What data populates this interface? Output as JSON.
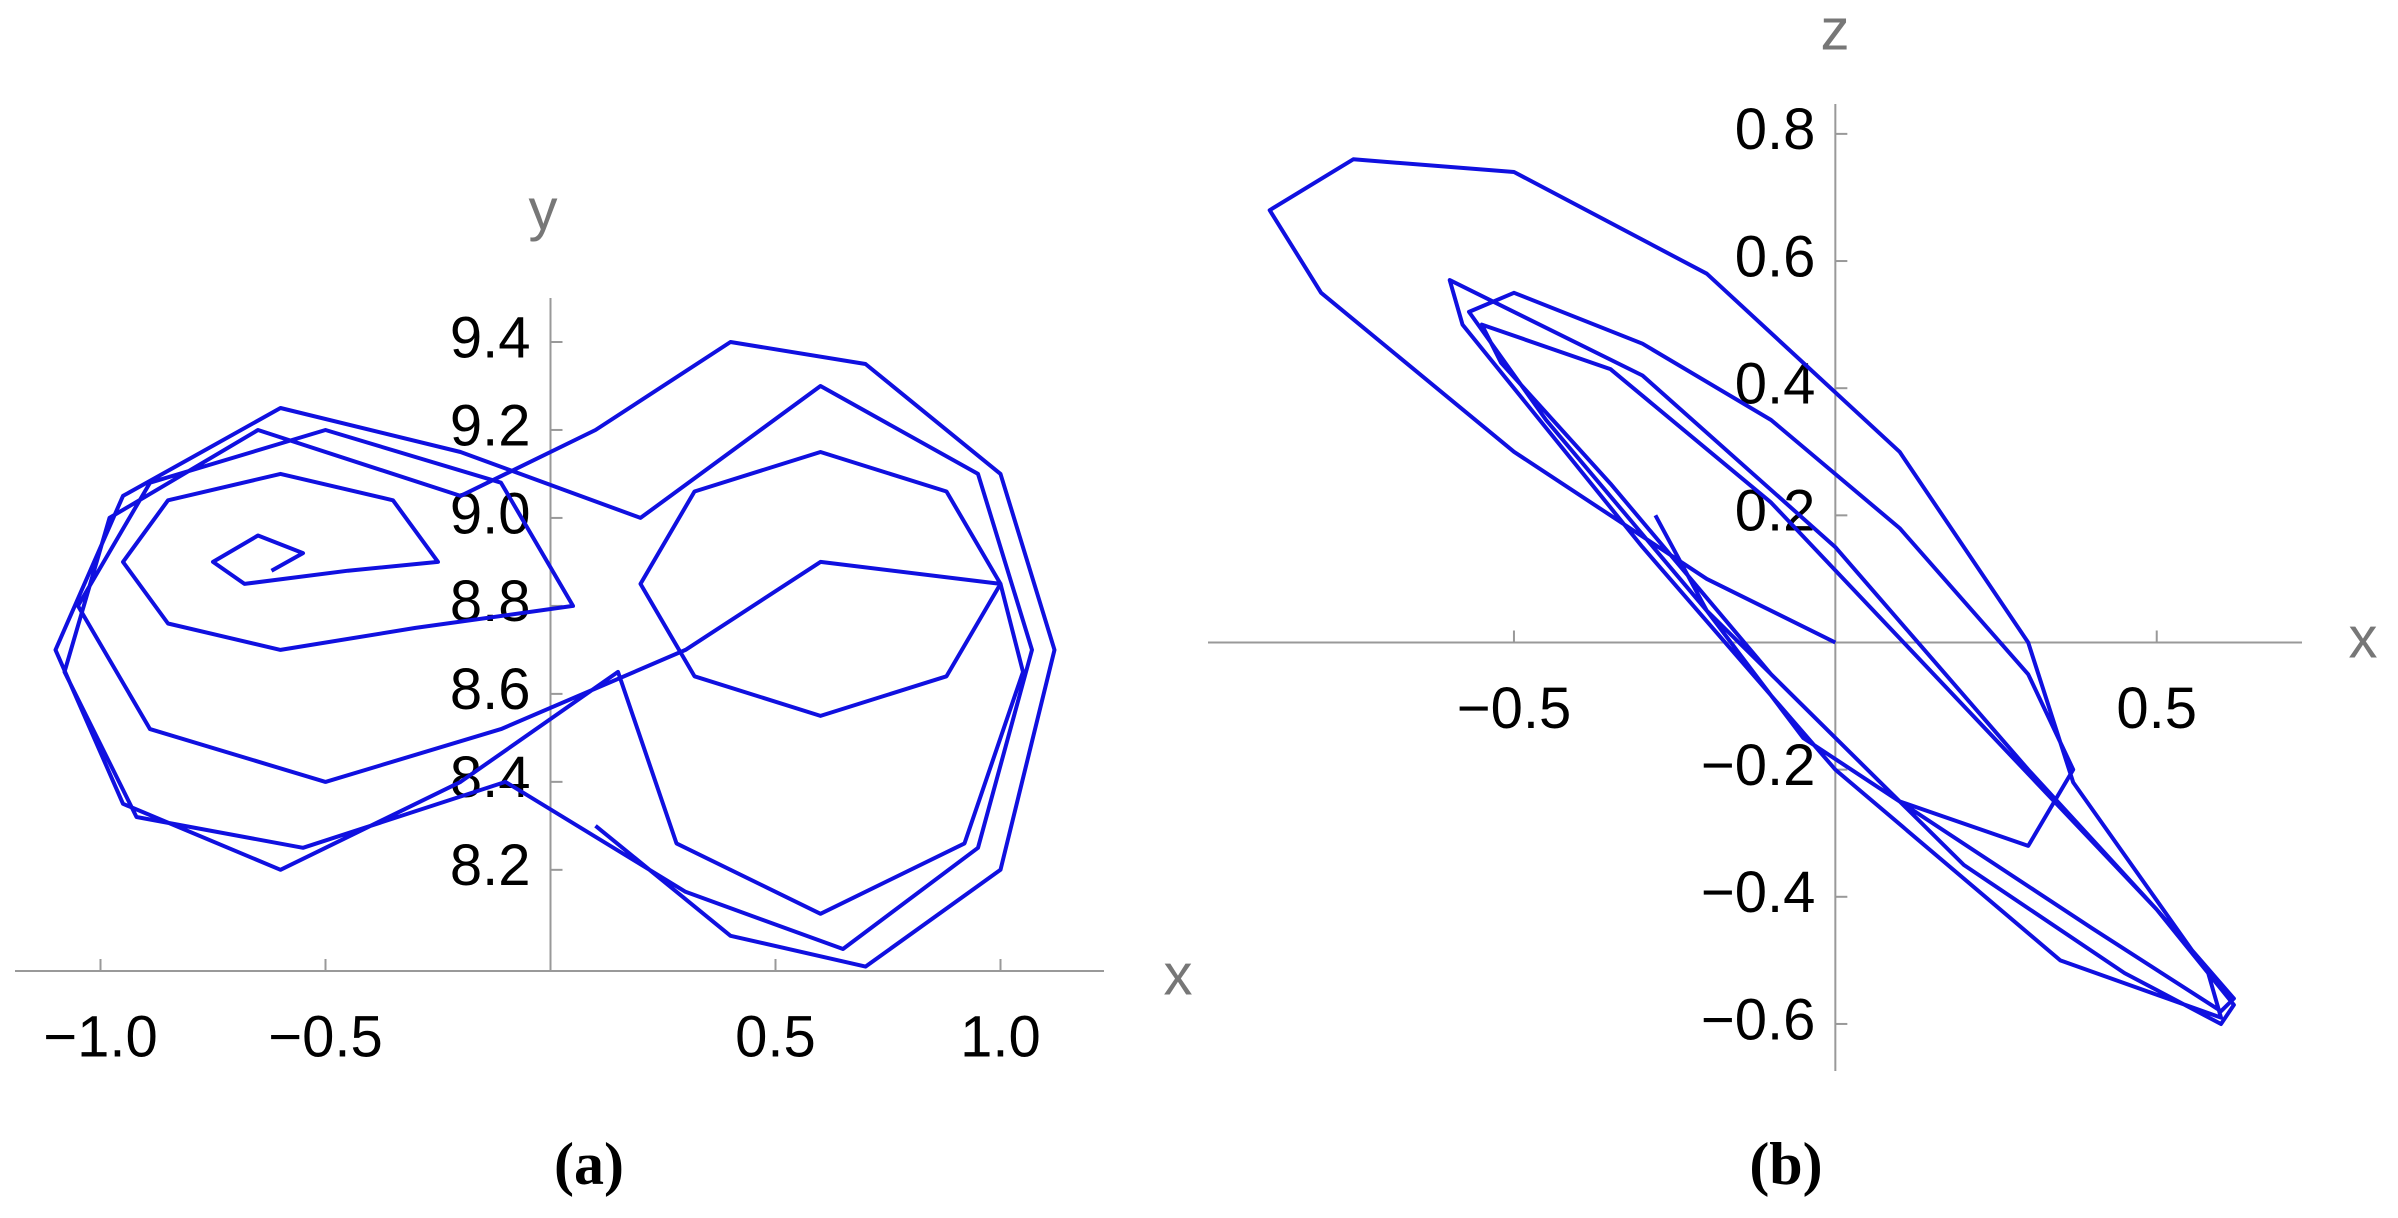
{
  "chart_data": [
    {
      "type": "line",
      "xlabel": "x",
      "ylabel": "y",
      "caption": "(a)",
      "color": "#1010e0",
      "xlim": [
        -1.19,
        1.23
      ],
      "ylim": [
        7.97,
        9.5
      ],
      "xticks": [
        {
          "value": -1,
          "label": "−1.0"
        },
        {
          "value": -0.5,
          "label": "−0.5"
        },
        0.5,
        {
          "value": 1,
          "label": "1.0"
        }
      ],
      "yticks": [
        8.2,
        8.4,
        8.6,
        8.8,
        {
          "value": 9,
          "label": "9.0"
        },
        9.2,
        9.4
      ],
      "x": [
        -0.62,
        -0.55,
        -0.65,
        -0.75,
        -0.68,
        -0.45,
        -0.25,
        -0.35,
        -0.6,
        -0.85,
        -0.95,
        -0.85,
        -0.6,
        -0.3,
        0.05,
        -0.11,
        -0.5,
        -0.89,
        -1.05,
        -0.89,
        -0.5,
        -0.11,
        0.3,
        0.6,
        1.0,
        0.88,
        0.6,
        0.32,
        0.2,
        0.32,
        0.6,
        0.88,
        1.0,
        1.05,
        0.92,
        0.6,
        0.28,
        0.15,
        -0.2,
        -0.6,
        -0.95,
        -1.1,
        -0.95,
        -0.6,
        -0.2,
        0.2,
        0.6,
        0.95,
        1.07,
        0.95,
        0.65,
        0.3,
        -0.1,
        -0.55,
        -0.92,
        -1.08,
        -0.98,
        -0.65,
        -0.2,
        0.1,
        0.4,
        0.7,
        1.0,
        1.12,
        1.0,
        0.7,
        0.4,
        0.1
      ],
      "values": [
        8.88,
        8.92,
        8.96,
        8.9,
        8.85,
        8.88,
        8.9,
        9.04,
        9.1,
        9.04,
        8.9,
        8.76,
        8.7,
        8.75,
        8.8,
        9.08,
        9.2,
        9.08,
        8.8,
        8.52,
        8.4,
        8.52,
        8.7,
        8.9,
        8.85,
        8.64,
        8.55,
        8.64,
        8.85,
        9.06,
        9.15,
        9.06,
        8.85,
        8.65,
        8.26,
        8.1,
        8.26,
        8.65,
        8.4,
        8.2,
        8.35,
        8.7,
        9.05,
        9.25,
        9.15,
        9.0,
        9.3,
        9.1,
        8.7,
        8.25,
        8.02,
        8.15,
        8.4,
        8.25,
        8.32,
        8.65,
        9.0,
        9.2,
        9.05,
        9.2,
        9.4,
        9.35,
        9.1,
        8.7,
        8.2,
        7.98,
        8.05,
        8.3
      ]
    },
    {
      "type": "line",
      "xlabel": "x",
      "ylabel": "z",
      "caption": "(b)",
      "color": "#1010e0",
      "xlim": [
        -0.976,
        0.726
      ],
      "ylim": [
        -0.674,
        0.847
      ],
      "xticks": [
        {
          "value": -0.5,
          "label": "−0.5"
        },
        0.5
      ],
      "yticks": [
        {
          "value": -0.6,
          "label": "−0.6"
        },
        {
          "value": -0.4,
          "label": "−0.4"
        },
        {
          "value": -0.2,
          "label": "−0.2"
        },
        0.2,
        0.4,
        0.6,
        0.8
      ],
      "x": [
        -0.28,
        -0.2,
        -0.05,
        0.1,
        0.3,
        0.37,
        0.3,
        0.1,
        -0.1,
        -0.3,
        -0.5,
        -0.57,
        -0.45,
        -0.2,
        0.1,
        0.4,
        0.6,
        0.62,
        0.5,
        0.2,
        -0.1,
        -0.35,
        -0.55,
        -0.52,
        -0.35,
        -0.1,
        0.2,
        0.45,
        0.6,
        0.62,
        0.5,
        0.3,
        0,
        -0.3,
        -0.6,
        -0.58,
        -0.3,
        0,
        0.35,
        0.6,
        0.58,
        0.37,
        0.3,
        0.1,
        -0.2,
        -0.5,
        -0.75,
        -0.88,
        -0.8,
        -0.5,
        -0.2,
        0
      ],
      "values": [
        0.2,
        0.05,
        -0.15,
        -0.25,
        -0.32,
        -0.2,
        -0.05,
        0.18,
        0.35,
        0.47,
        0.55,
        0.52,
        0.35,
        0.05,
        -0.25,
        -0.45,
        -0.58,
        -0.56,
        -0.42,
        -0.1,
        0.22,
        0.43,
        0.5,
        0.44,
        0.25,
        -0.05,
        -0.35,
        -0.52,
        -0.6,
        -0.57,
        -0.42,
        -0.2,
        0.15,
        0.42,
        0.57,
        0.5,
        0.15,
        -0.2,
        -0.5,
        -0.59,
        -0.52,
        -0.22,
        0,
        0.3,
        0.58,
        0.74,
        0.76,
        0.68,
        0.55,
        0.3,
        0.1,
        0
      ]
    }
  ]
}
